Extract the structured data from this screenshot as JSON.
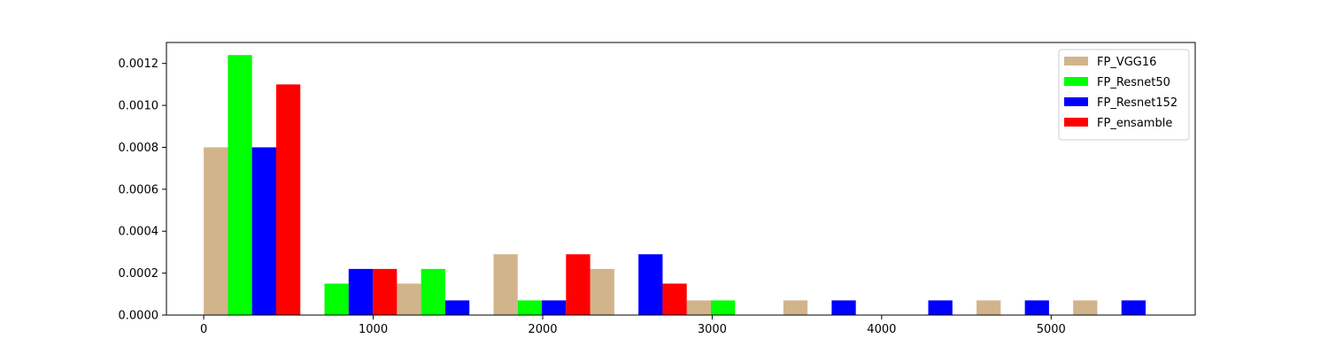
{
  "chart_data": {
    "type": "bar",
    "title": "",
    "xlabel": "",
    "ylabel": "",
    "xlim": [
      -220,
      5850
    ],
    "ylim": [
      0,
      0.0013
    ],
    "bin_width": 570,
    "grid": false,
    "legend_placement": "top-right",
    "x_ticks": [
      0,
      1000,
      2000,
      3000,
      4000,
      5000
    ],
    "x_tick_labels": [
      "0",
      "1000",
      "2000",
      "3000",
      "4000",
      "5000"
    ],
    "y_ticks": [
      0,
      0.0002,
      0.0004,
      0.0006,
      0.0008,
      0.001,
      0.0012
    ],
    "y_tick_labels": [
      "0.0000",
      "0.0002",
      "0.0004",
      "0.0006",
      "0.0008",
      "0.0010",
      "0.0012"
    ],
    "bins": [
      0,
      570,
      1140,
      1710,
      2280,
      2850,
      3420,
      3990,
      4560,
      5130
    ],
    "series": [
      {
        "name": "FP_VGG16",
        "color": "#d2b48c",
        "values": [
          0.0008,
          0,
          0.00015,
          0.00029,
          0.00022,
          7e-05,
          7e-05,
          0,
          7e-05,
          7e-05
        ]
      },
      {
        "name": "FP_Resnet50",
        "color": "#00ff00",
        "values": [
          0.00124,
          0.00015,
          0.00022,
          7e-05,
          0,
          7e-05,
          0,
          0,
          0,
          0
        ]
      },
      {
        "name": "FP_Resnet152",
        "color": "#0000ff",
        "values": [
          0.0008,
          0.00022,
          7e-05,
          7e-05,
          0.00029,
          0,
          7e-05,
          7e-05,
          7e-05,
          7e-05
        ]
      },
      {
        "name": "FP_ensamble",
        "color": "#ff0000",
        "values": [
          0.0011,
          0.00022,
          0,
          0.00029,
          0.00015,
          0,
          0,
          0,
          0,
          0
        ]
      }
    ]
  }
}
